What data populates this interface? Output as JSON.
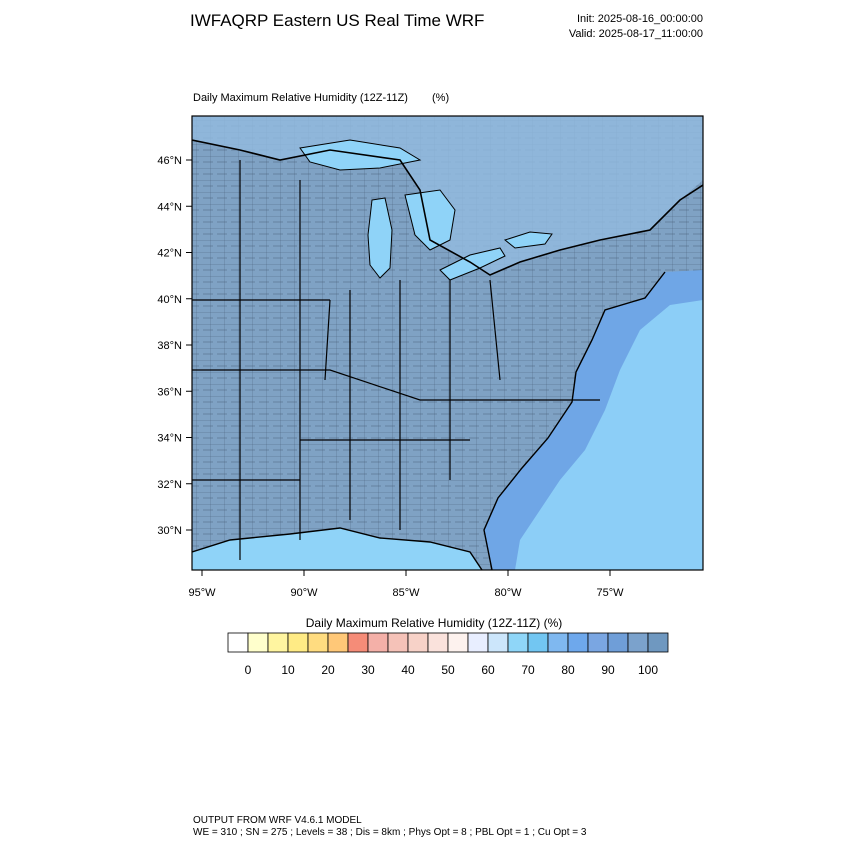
{
  "header": {
    "title": "IWFAQRP Eastern US Real Time WRF",
    "init": "Init: 2025-08-16_00:00:00",
    "valid": "Valid: 2025-08-17_11:00:00"
  },
  "map": {
    "title": "Daily Maximum Relative Humidity (12Z-11Z)",
    "units": "(%)",
    "lat_labels": [
      "46°N",
      "44°N",
      "42°N",
      "40°N",
      "38°N",
      "36°N",
      "34°N",
      "32°N",
      "30°N"
    ],
    "lon_labels": [
      "95°W",
      "90°W",
      "85°W",
      "80°W",
      "75°W"
    ]
  },
  "colorbar": {
    "title": "Daily Maximum Relative Humidity (12Z-11Z)  (%)",
    "colors": [
      "#ffffff",
      "#ffffcc",
      "#fff5a0",
      "#ffeb85",
      "#ffdc80",
      "#ffc878",
      "#f58c78",
      "#f4b0a8",
      "#f5c2b8",
      "#f7d2c8",
      "#fae2dc",
      "#fdf2ee",
      "#e8eeff",
      "#cce6fb",
      "#8fd6f8",
      "#72c6f2",
      "#7fb8f0",
      "#6ea8ec",
      "#7aa6e2",
      "#6f9ed8",
      "#7ba2cc",
      "#6f98c0"
    ],
    "labels": [
      "0",
      "10",
      "20",
      "30",
      "40",
      "50",
      "60",
      "70",
      "80",
      "90",
      "100"
    ]
  },
  "footer": {
    "line1": "OUTPUT FROM WRF V4.6.1 MODEL",
    "line2": "WE = 310 ; SN = 275 ; Levels = 38 ; Dis = 8km ; Phys Opt = 8 ; PBL Opt = 1 ; Cu Opt = 3"
  }
}
